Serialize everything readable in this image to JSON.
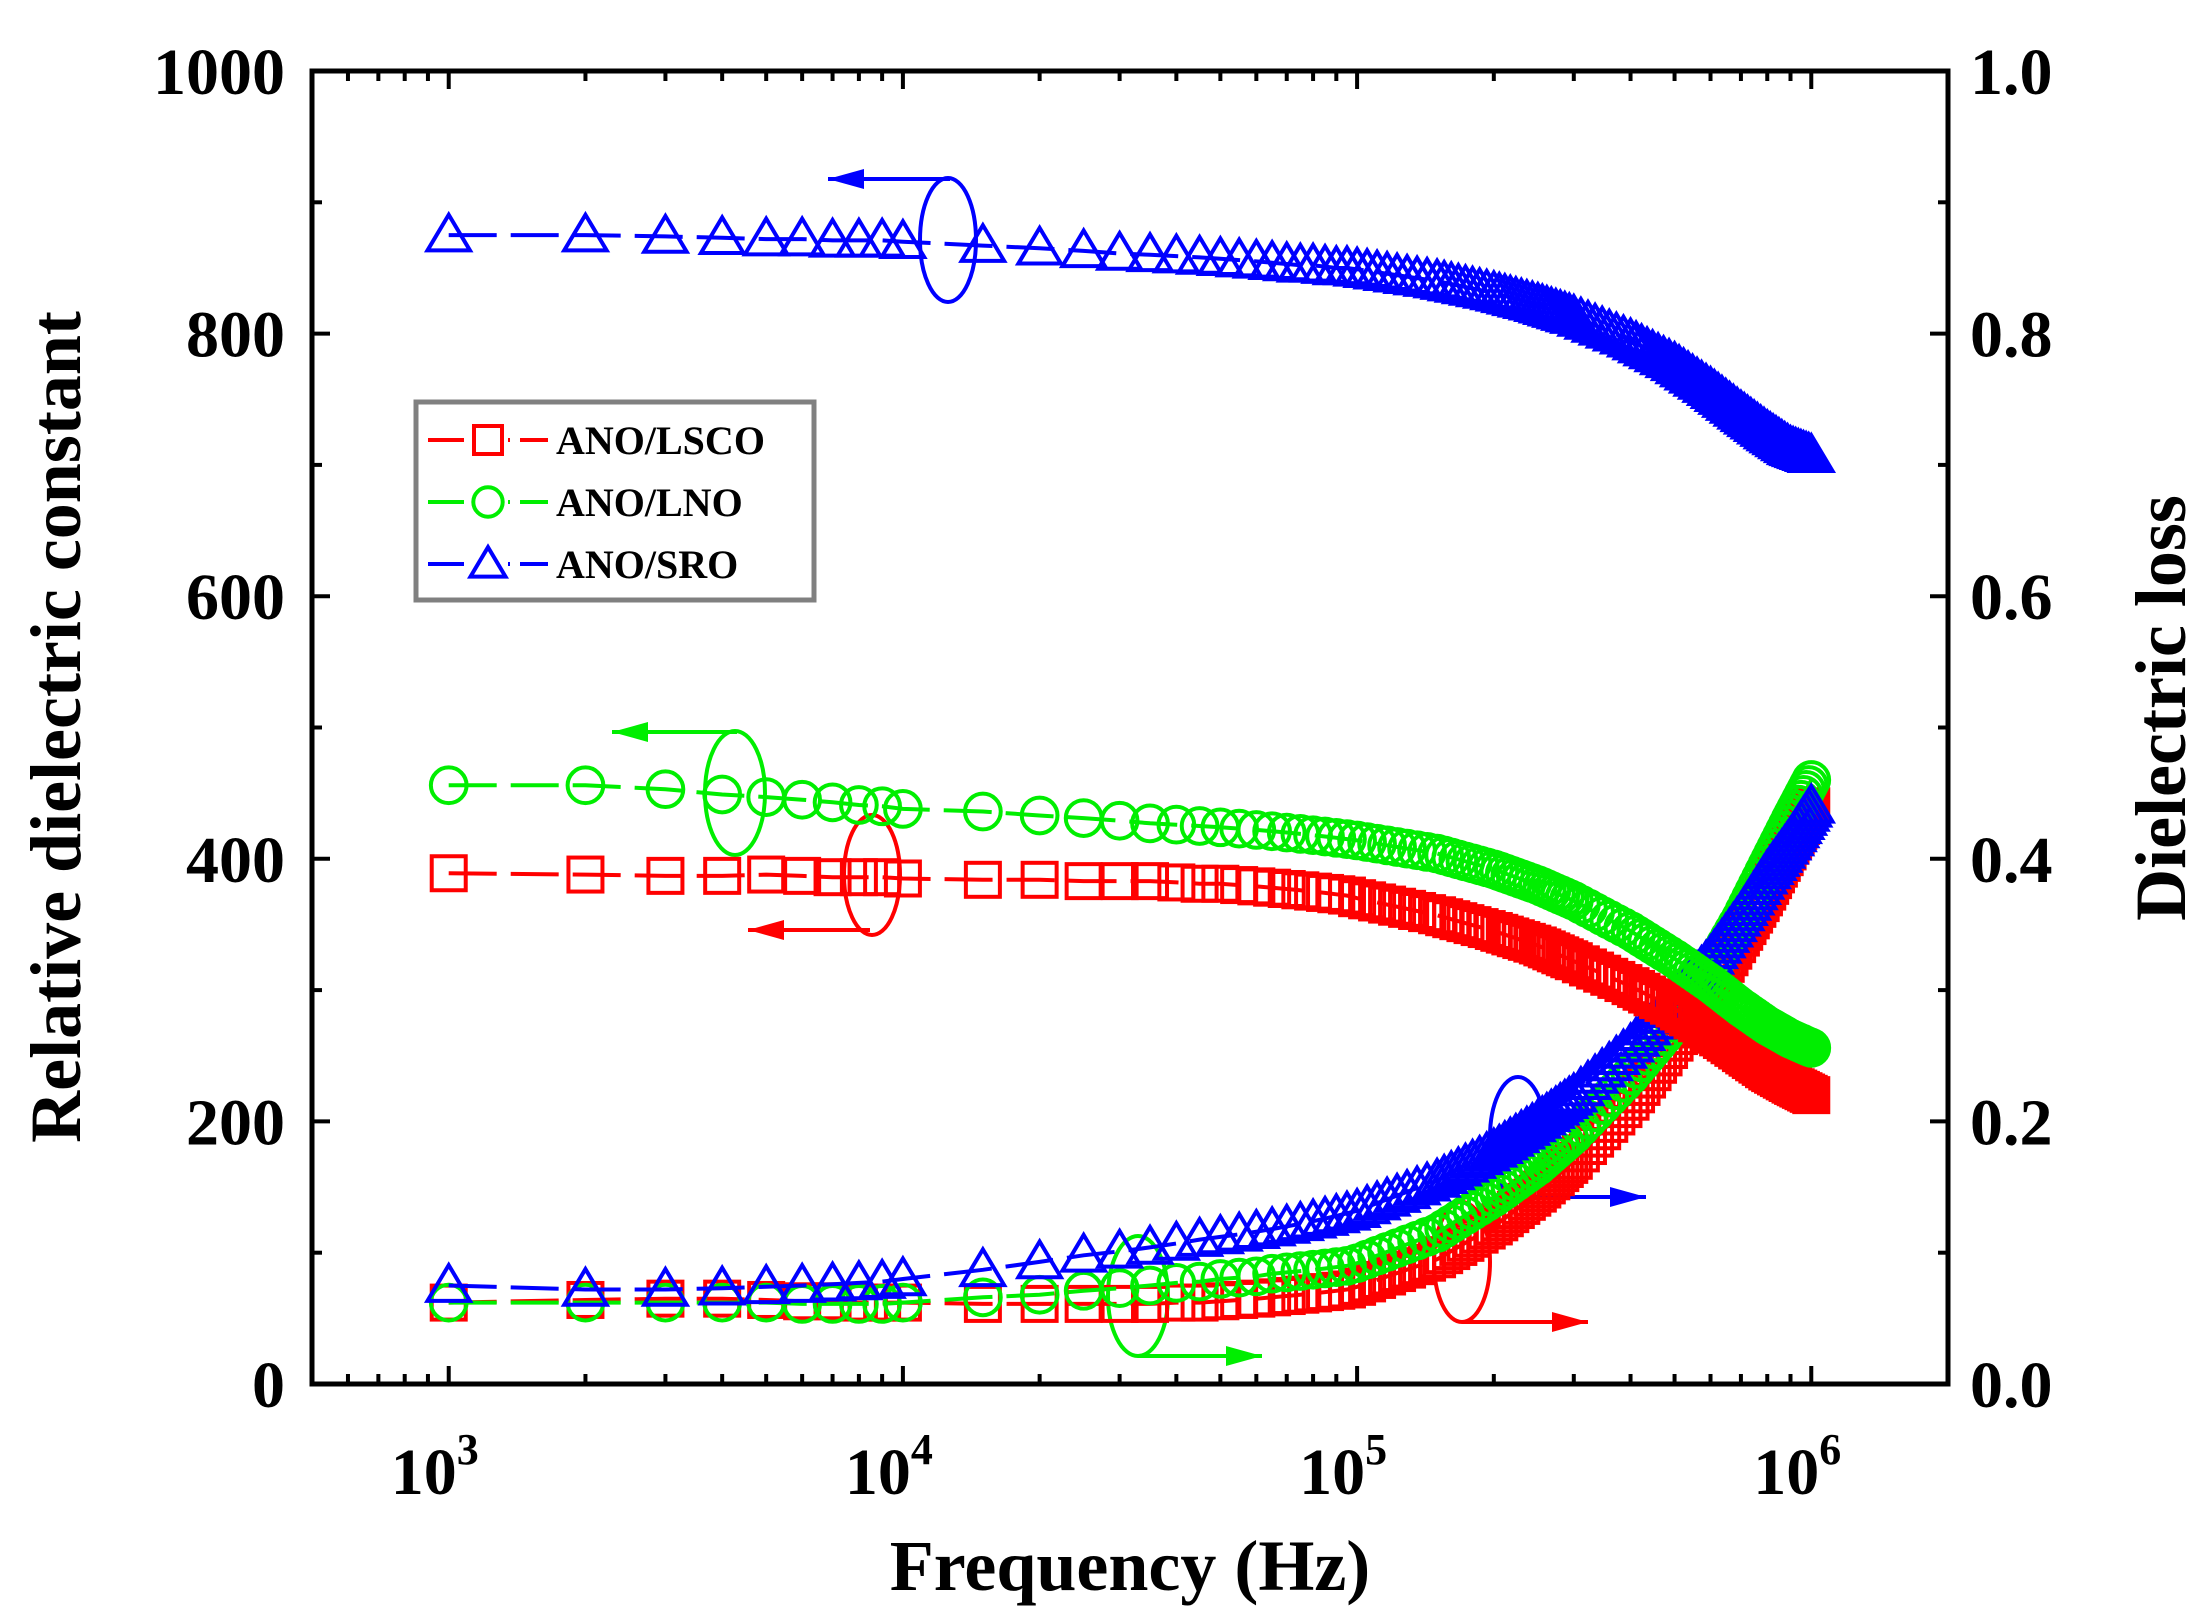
{
  "chart_data": {
    "type": "scatter",
    "title": "",
    "xlabel": "Frequency (Hz)",
    "ylabel_left": "Relative dielectric constant",
    "ylabel_right": "Dielectric loss",
    "xscale": "log",
    "xlim": [
      500,
      2000000
    ],
    "ylim_left": [
      0,
      1000
    ],
    "ylim_right": [
      0.0,
      1.0
    ],
    "x_ticks": [
      {
        "value": 1000,
        "base": "10",
        "exp": "3"
      },
      {
        "value": 10000,
        "base": "10",
        "exp": "4"
      },
      {
        "value": 100000,
        "base": "10",
        "exp": "5"
      },
      {
        "value": 1000000,
        "base": "10",
        "exp": "6"
      }
    ],
    "y_ticks_left": [
      "0",
      "200",
      "400",
      "600",
      "800",
      "1000"
    ],
    "y_ticks_right": [
      "0.0",
      "0.2",
      "0.4",
      "0.6",
      "0.8",
      "1.0"
    ],
    "grid": false,
    "legend_position": "upper-left",
    "frequencies": [
      1000,
      2000,
      3000,
      4000,
      5000,
      6000,
      7000,
      8000,
      9000,
      10000,
      15000,
      20000,
      25000,
      30000,
      35000,
      40000,
      45000,
      50000,
      55000,
      60000,
      65000,
      70000,
      75000,
      80000,
      85000,
      90000,
      95000,
      100000,
      150000,
      200000,
      250000,
      300000,
      400000,
      500000,
      600000,
      700000,
      800000,
      900000,
      1000000
    ],
    "series": [
      {
        "name": "ANO/LSCO",
        "color": "#ff0000",
        "marker": "square",
        "dielectric_constant": [
          389,
          388,
          387,
          387,
          388,
          387,
          386,
          386,
          386,
          385,
          384,
          384,
          383,
          383,
          383,
          382,
          381,
          381,
          380,
          379,
          378,
          377,
          376,
          375,
          374,
          373,
          372,
          370,
          357,
          345,
          334,
          322,
          303,
          286,
          268,
          252,
          238,
          228,
          220
        ],
        "dielectric_loss": [
          0.062,
          0.064,
          0.065,
          0.065,
          0.064,
          0.063,
          0.063,
          0.062,
          0.062,
          0.062,
          0.061,
          0.061,
          0.061,
          0.061,
          0.061,
          0.062,
          0.062,
          0.063,
          0.064,
          0.065,
          0.066,
          0.067,
          0.068,
          0.069,
          0.07,
          0.071,
          0.072,
          0.074,
          0.095,
          0.12,
          0.145,
          0.17,
          0.215,
          0.26,
          0.3,
          0.34,
          0.375,
          0.41,
          0.44
        ]
      },
      {
        "name": "ANO/LNO",
        "color": "#00ee00",
        "marker": "circle",
        "dielectric_constant": [
          456,
          456,
          453,
          449,
          447,
          445,
          443,
          441,
          440,
          438,
          436,
          433,
          431,
          429,
          427,
          426,
          425,
          424,
          423,
          422,
          421,
          420,
          419,
          418,
          417,
          416,
          415,
          414,
          404,
          392,
          380,
          368,
          345,
          324,
          305,
          287,
          273,
          263,
          256
        ],
        "dielectric_loss": [
          0.062,
          0.062,
          0.062,
          0.062,
          0.062,
          0.061,
          0.061,
          0.061,
          0.061,
          0.062,
          0.066,
          0.068,
          0.071,
          0.073,
          0.075,
          0.077,
          0.078,
          0.08,
          0.081,
          0.082,
          0.084,
          0.085,
          0.086,
          0.087,
          0.088,
          0.089,
          0.09,
          0.092,
          0.115,
          0.142,
          0.166,
          0.19,
          0.235,
          0.275,
          0.315,
          0.355,
          0.395,
          0.43,
          0.46
        ]
      },
      {
        "name": "ANO/SRO",
        "color": "#0000ff",
        "marker": "triangle",
        "dielectric_constant": [
          875,
          875,
          874,
          873,
          872,
          872,
          871,
          871,
          871,
          870,
          867,
          865,
          863,
          861,
          860,
          859,
          858,
          857,
          856,
          855,
          854,
          853,
          852,
          852,
          851,
          850,
          850,
          849,
          840,
          831,
          822,
          813,
          795,
          777,
          758,
          740,
          725,
          713,
          707
        ],
        "dielectric_loss": [
          0.075,
          0.072,
          0.072,
          0.073,
          0.074,
          0.075,
          0.076,
          0.077,
          0.078,
          0.08,
          0.087,
          0.093,
          0.098,
          0.101,
          0.104,
          0.107,
          0.11,
          0.112,
          0.114,
          0.116,
          0.118,
          0.12,
          0.122,
          0.124,
          0.126,
          0.128,
          0.13,
          0.132,
          0.155,
          0.178,
          0.2,
          0.22,
          0.258,
          0.293,
          0.325,
          0.358,
          0.39,
          0.415,
          0.44
        ]
      }
    ]
  }
}
